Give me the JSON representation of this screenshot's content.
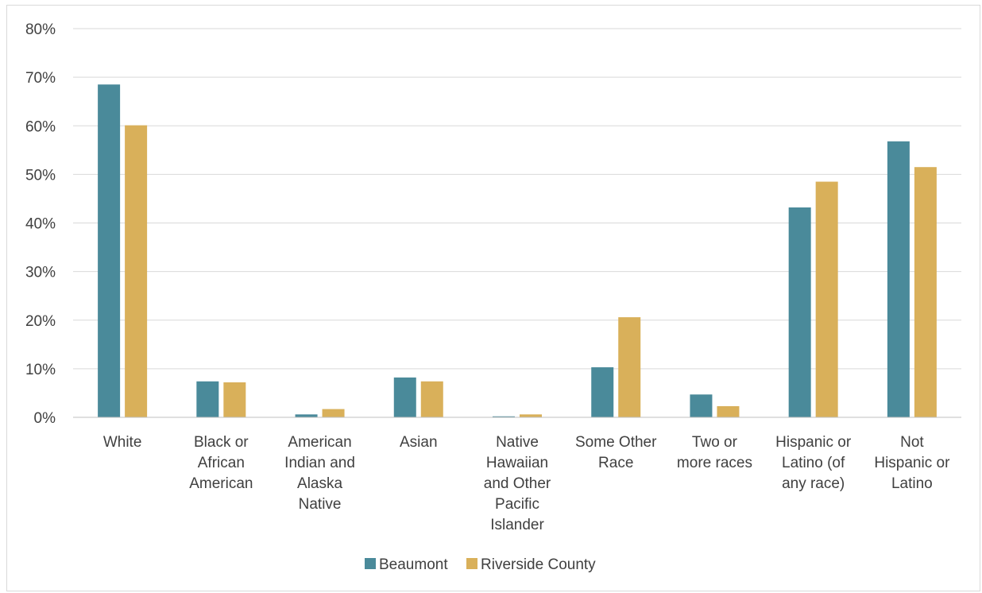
{
  "chart_data": {
    "type": "bar",
    "categories": [
      [
        "White"
      ],
      [
        "Black or",
        "African",
        "American"
      ],
      [
        "American",
        "Indian and",
        "Alaska",
        "Native"
      ],
      [
        "Asian"
      ],
      [
        "Native",
        "Hawaiian",
        "and Other",
        "Pacific",
        "Islander"
      ],
      [
        "Some Other",
        "Race"
      ],
      [
        "Two or",
        "more races"
      ],
      [
        "Hispanic or",
        "Latino (of",
        "any race)"
      ],
      [
        "Not",
        "Hispanic or",
        "Latino"
      ]
    ],
    "series": [
      {
        "name": "Beaumont",
        "color": "#4a8a9a",
        "values": [
          68.5,
          7.4,
          0.6,
          8.2,
          0.2,
          10.3,
          4.7,
          43.2,
          56.8
        ]
      },
      {
        "name": "Riverside County",
        "color": "#d9b05a",
        "values": [
          60.1,
          7.2,
          1.7,
          7.4,
          0.6,
          20.6,
          2.3,
          48.5,
          51.5
        ]
      }
    ],
    "ylim": [
      0,
      80
    ],
    "yticks": [
      "0%",
      "10%",
      "20%",
      "30%",
      "40%",
      "50%",
      "60%",
      "70%",
      "80%"
    ],
    "grid": true,
    "legend_position": "bottom",
    "title": "",
    "xlabel": "",
    "ylabel": ""
  }
}
